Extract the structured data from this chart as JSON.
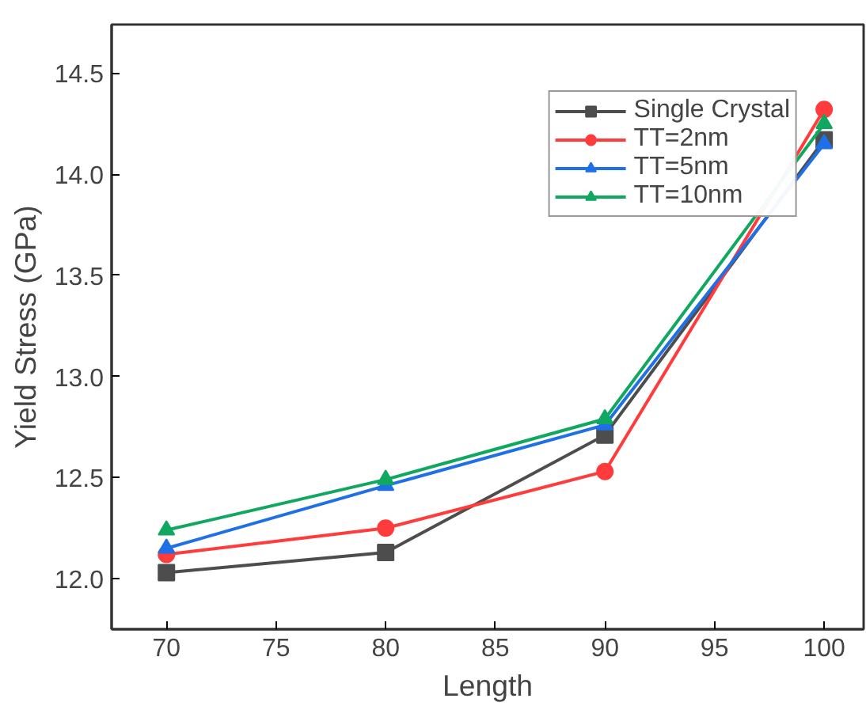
{
  "chart_data": {
    "type": "line",
    "xlabel": "Length",
    "ylabel": "Yield Stress (GPa)",
    "x": [
      70,
      80,
      90,
      100
    ],
    "series": [
      {
        "name": "Single Crystal",
        "color": "#4d4d4d",
        "marker": "square",
        "values": [
          12.03,
          12.13,
          12.71,
          14.17
        ]
      },
      {
        "name": "TT=2nm",
        "color": "#ff3b3b",
        "marker": "circle",
        "values": [
          12.12,
          12.25,
          12.53,
          14.32
        ]
      },
      {
        "name": "TT=5nm",
        "color": "#1f6fe6",
        "marker": "triangle",
        "values": [
          12.15,
          12.46,
          12.76,
          14.15
        ]
      },
      {
        "name": "TT=10nm",
        "color": "#10a860",
        "marker": "triangle",
        "values": [
          12.24,
          12.49,
          12.79,
          14.25
        ]
      }
    ],
    "xlim": [
      67.5,
      101.8
    ],
    "ylim": [
      11.75,
      14.74
    ],
    "xticks": [
      70,
      75,
      80,
      85,
      90,
      95,
      100
    ],
    "yticks": [
      {
        "value": 12.0,
        "label": "12.0"
      },
      {
        "value": 12.5,
        "label": "12.5"
      },
      {
        "value": 13.0,
        "label": "13.0"
      },
      {
        "value": 13.5,
        "label": "13.5"
      },
      {
        "value": 14.0,
        "label": "14.0"
      },
      {
        "value": 14.5,
        "label": "14.5"
      }
    ],
    "grid": false,
    "legend": "top right",
    "line_style": "solid"
  }
}
